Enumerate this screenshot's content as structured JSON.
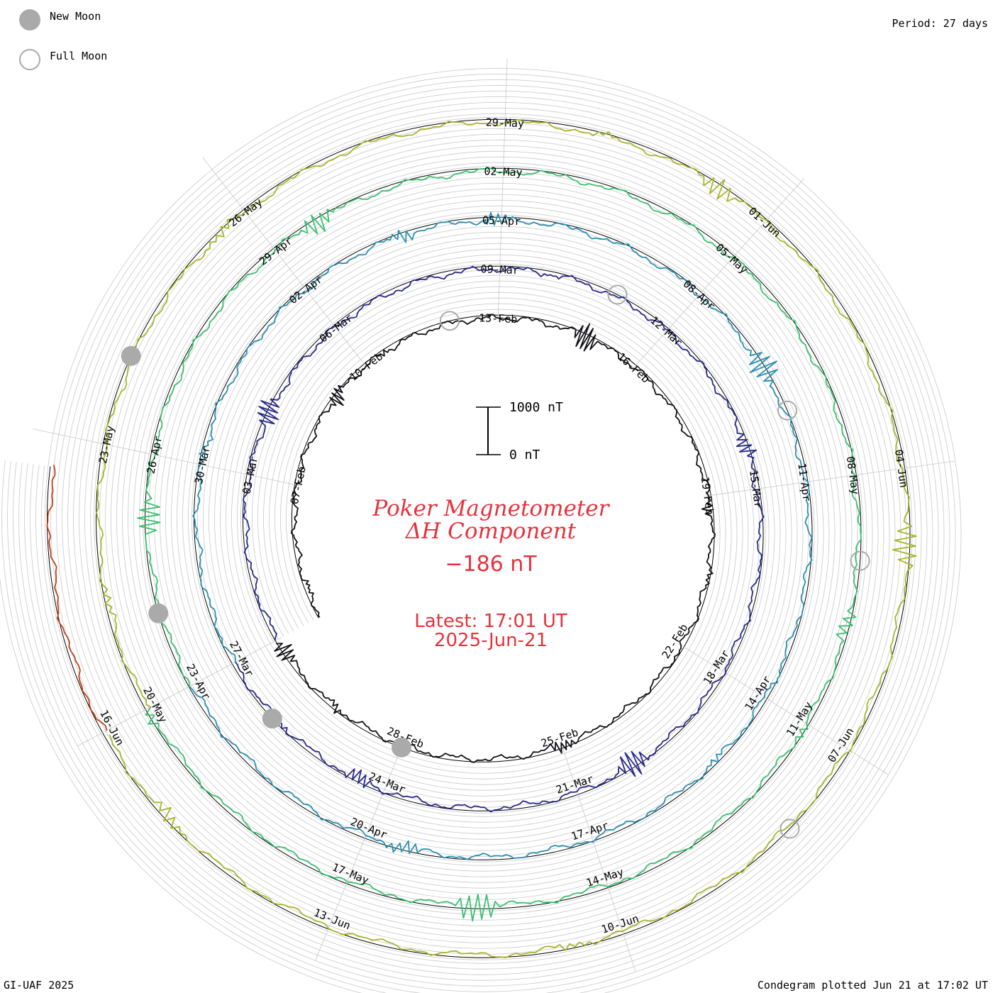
{
  "legend": {
    "new_moon_label": "New Moon",
    "full_moon_label": "Full Moon",
    "new_moon_color": "#aaaaaa",
    "full_moon_color": "#aaaaaa"
  },
  "header": {
    "period": "Period: 27 days"
  },
  "footer": {
    "credit": "GI-UAF 2025",
    "plotted": "Condegram plotted Jun 21 at 17:02 UT"
  },
  "center": {
    "title_line1": "Poker Magnetometer",
    "title_line2": "ΔH Component",
    "value": "−186 nT",
    "latest_line1": "Latest: 17:01 UT",
    "latest_line2": "2025-Jun-21",
    "scale_top": "1000 nT",
    "scale_bottom": "0 nT"
  },
  "chart_data": {
    "type": "line",
    "title": "Poker Magnetometer ΔH Component",
    "period_days": 27,
    "start_date": "2025-02-04",
    "end_date": "2025-06-21",
    "latest_value_nT": -186,
    "scale_nT": [
      0,
      1000
    ],
    "cycles": [
      {
        "color": "#111118",
        "date_labels": [
          "07-Feb",
          "10-Feb",
          "13-Feb",
          "16-Feb",
          "19-Feb",
          "22-Feb",
          "25-Feb",
          "28-Feb"
        ]
      },
      {
        "color": "#2a2a8a",
        "date_labels": [
          "03-Mar",
          "06-Mar",
          "09-Mar",
          "12-Mar",
          "15-Mar",
          "18-Mar",
          "21-Mar",
          "24-Mar",
          "27-Mar"
        ]
      },
      {
        "color": "#2b8fb0",
        "date_labels": [
          "30-Mar",
          "02-Apr",
          "05-Apr",
          "08-Apr",
          "11-Apr",
          "14-Apr",
          "17-Apr",
          "20-Apr",
          "23-Apr"
        ]
      },
      {
        "color": "#3cbf70",
        "date_labels": [
          "26-Apr",
          "29-Apr",
          "02-May",
          "05-May",
          "08-May",
          "11-May",
          "14-May",
          "17-May",
          "20-May"
        ]
      },
      {
        "color": "#a7b62a",
        "date_labels": [
          "23-May",
          "26-May",
          "29-May",
          "01-Jun",
          "04-Jun",
          "07-Jun",
          "10-Jun",
          "13-Jun",
          "16-Jun"
        ]
      },
      {
        "color": "#c0401a",
        "date_labels": []
      }
    ],
    "new_moons": [
      "2025-02-28",
      "2025-03-29",
      "2025-04-27",
      "2025-05-27"
    ],
    "full_moons": [
      "2025-02-12",
      "2025-03-14",
      "2025-04-13",
      "2025-05-12",
      "2025-06-11"
    ]
  }
}
